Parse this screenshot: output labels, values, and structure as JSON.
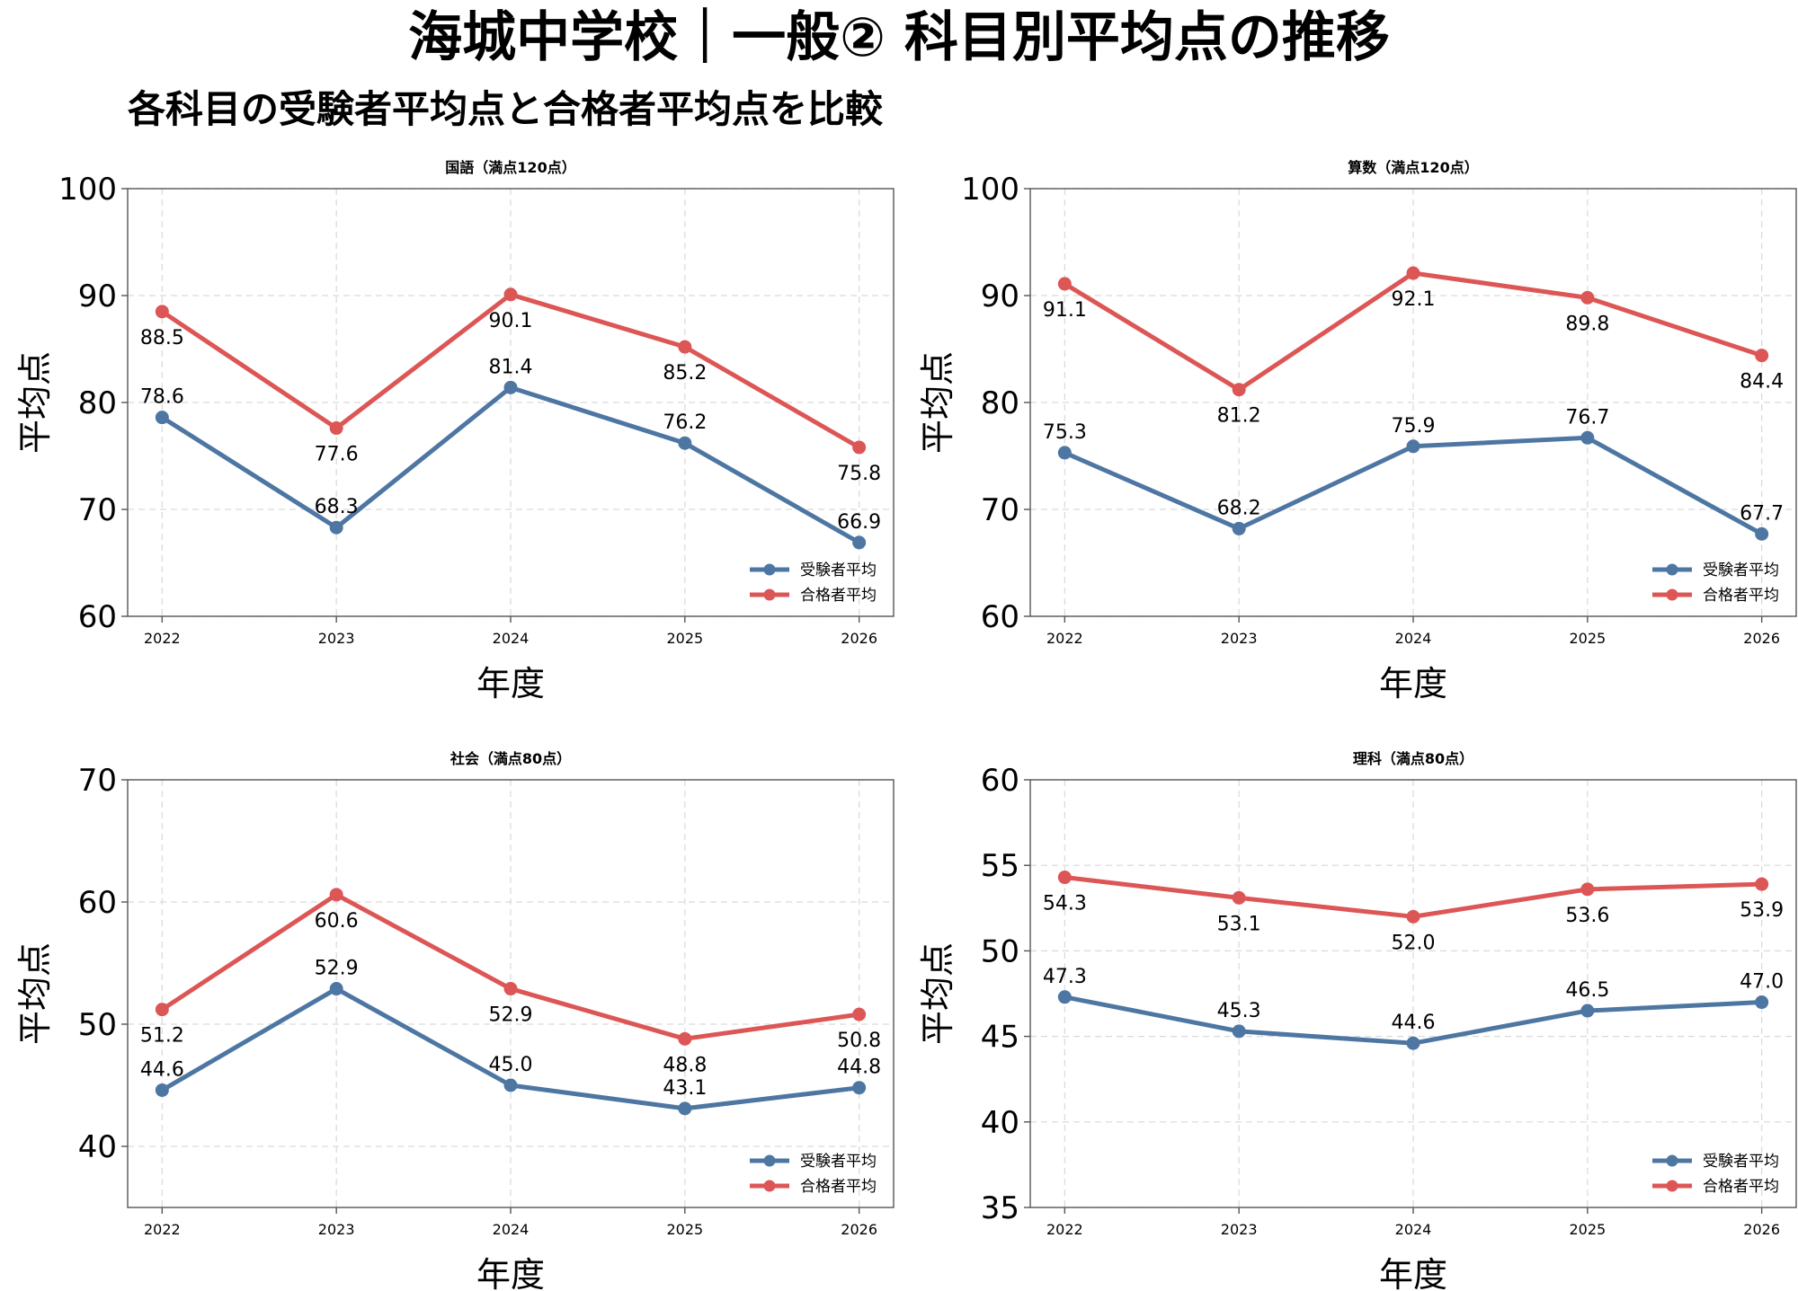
{
  "title": "海城中学校｜一般② 科目別平均点の推移",
  "subtitle": "各科目の受験者平均点と合格者平均点を比較",
  "colors": {
    "applicants": "#4e76a3",
    "passers": "#dd5656",
    "grid": "#d9d9d9",
    "axis": "#555555"
  },
  "chart_data": [
    {
      "type": "line",
      "title": "国語（満点120点）",
      "xlabel": "年度",
      "ylabel": "平均点",
      "x": [
        "2022",
        "2023",
        "2024",
        "2025",
        "2026"
      ],
      "ylim": [
        60,
        100
      ],
      "yticks": [
        60,
        70,
        80,
        90,
        100
      ],
      "grid": true,
      "legend": "lower-right",
      "series": [
        {
          "name": "受験者平均",
          "color": "#4e76a3",
          "values": [
            78.6,
            68.3,
            81.4,
            76.2,
            66.9
          ],
          "labels": [
            "78.6",
            "68.3",
            "81.4",
            "76.2",
            "66.9"
          ]
        },
        {
          "name": "合格者平均",
          "color": "#dd5656",
          "values": [
            88.5,
            77.6,
            90.1,
            85.2,
            75.8
          ],
          "labels": [
            "88.5",
            "77.6",
            "90.1",
            "85.2",
            "75.8"
          ]
        }
      ]
    },
    {
      "type": "line",
      "title": "算数（満点120点）",
      "xlabel": "年度",
      "ylabel": "平均点",
      "x": [
        "2022",
        "2023",
        "2024",
        "2025",
        "2026"
      ],
      "ylim": [
        60,
        100
      ],
      "yticks": [
        60,
        70,
        80,
        90,
        100
      ],
      "grid": true,
      "legend": "lower-right",
      "series": [
        {
          "name": "受験者平均",
          "color": "#4e76a3",
          "values": [
            75.3,
            68.2,
            75.9,
            76.7,
            67.7
          ],
          "labels": [
            "75.3",
            "68.2",
            "75.9",
            "76.7",
            "67.7"
          ]
        },
        {
          "name": "合格者平均",
          "color": "#dd5656",
          "values": [
            91.1,
            81.2,
            92.1,
            89.8,
            84.4
          ],
          "labels": [
            "91.1",
            "81.2",
            "92.1",
            "89.8",
            "84.4"
          ]
        }
      ]
    },
    {
      "type": "line",
      "title": "社会（満点80点）",
      "xlabel": "年度",
      "ylabel": "平均点",
      "x": [
        "2022",
        "2023",
        "2024",
        "2025",
        "2026"
      ],
      "ylim": [
        35,
        70
      ],
      "yticks": [
        40,
        50,
        60,
        70
      ],
      "grid": true,
      "legend": "lower-right",
      "series": [
        {
          "name": "受験者平均",
          "color": "#4e76a3",
          "values": [
            44.6,
            52.9,
            45.0,
            43.1,
            44.8
          ],
          "labels": [
            "44.6",
            "52.9",
            "45.0",
            "43.1",
            "44.8"
          ]
        },
        {
          "name": "合格者平均",
          "color": "#dd5656",
          "values": [
            51.2,
            60.6,
            52.9,
            48.8,
            50.8
          ],
          "labels": [
            "51.2",
            "60.6",
            "52.9",
            "48.8",
            "50.8"
          ]
        }
      ]
    },
    {
      "type": "line",
      "title": "理科（満点80点）",
      "xlabel": "年度",
      "ylabel": "平均点",
      "x": [
        "2022",
        "2023",
        "2024",
        "2025",
        "2026"
      ],
      "ylim": [
        35,
        60
      ],
      "yticks": [
        35,
        40,
        45,
        50,
        55,
        60
      ],
      "grid": true,
      "legend": "lower-right",
      "series": [
        {
          "name": "受験者平均",
          "color": "#4e76a3",
          "values": [
            47.3,
            45.3,
            44.6,
            46.5,
            47.0
          ],
          "labels": [
            "47.3",
            "45.3",
            "44.6",
            "46.5",
            "47.0"
          ]
        },
        {
          "name": "合格者平均",
          "color": "#dd5656",
          "values": [
            54.3,
            53.1,
            52.0,
            53.6,
            53.9
          ],
          "labels": [
            "54.3",
            "53.1",
            "52.0",
            "53.6",
            "53.9"
          ]
        }
      ]
    }
  ]
}
